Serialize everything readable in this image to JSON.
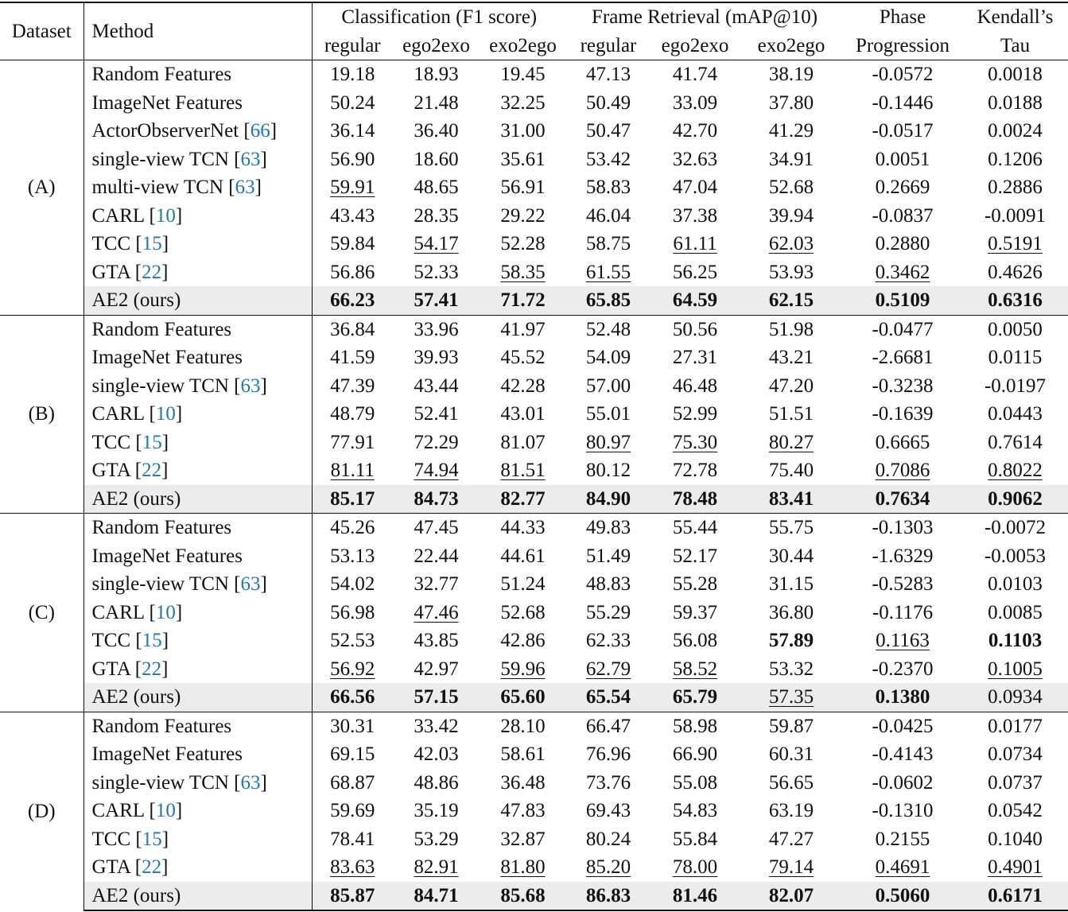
{
  "header": {
    "dataset": "Dataset",
    "method": "Method",
    "groups": [
      "Classification (F1 score)",
      "Frame Retrieval (mAP@10)"
    ],
    "sub": [
      "regular",
      "ego2exo",
      "exo2ego",
      "regular",
      "ego2exo",
      "exo2ego"
    ],
    "phase": [
      "Phase",
      "Progression"
    ],
    "tau": [
      "Kendall’s",
      "Tau"
    ]
  },
  "groups": [
    {
      "label": "(A)",
      "rows": [
        {
          "method": "Random Features",
          "values": [
            "19.18",
            "18.93",
            "19.45",
            "47.13",
            "41.74",
            "38.19",
            "-0.0572",
            "0.0018"
          ],
          "bold": [],
          "underline": []
        },
        {
          "method": "ImageNet Features",
          "values": [
            "50.24",
            "21.48",
            "32.25",
            "50.49",
            "33.09",
            "37.80",
            "-0.1446",
            "0.0188"
          ],
          "bold": [],
          "underline": []
        },
        {
          "method": "ActorObserverNet [66]",
          "values": [
            "36.14",
            "36.40",
            "31.00",
            "50.47",
            "42.70",
            "41.29",
            "-0.0517",
            "0.0024"
          ],
          "bold": [],
          "underline": []
        },
        {
          "method": "single-view TCN [63]",
          "values": [
            "56.90",
            "18.60",
            "35.61",
            "53.42",
            "32.63",
            "34.91",
            "0.0051",
            "0.1206"
          ],
          "bold": [],
          "underline": []
        },
        {
          "method": "multi-view TCN [63]",
          "values": [
            "59.91",
            "48.65",
            "56.91",
            "58.83",
            "47.04",
            "52.68",
            "0.2669",
            "0.2886"
          ],
          "bold": [],
          "underline": [
            0
          ]
        },
        {
          "method": "CARL [10]",
          "values": [
            "43.43",
            "28.35",
            "29.22",
            "46.04",
            "37.38",
            "39.94",
            "-0.0837",
            "-0.0091"
          ],
          "bold": [],
          "underline": []
        },
        {
          "method": "TCC [15]",
          "values": [
            "59.84",
            "54.17",
            "52.28",
            "58.75",
            "61.11",
            "62.03",
            "0.2880",
            "0.5191"
          ],
          "bold": [],
          "underline": [
            1,
            4,
            5,
            7
          ]
        },
        {
          "method": "GTA [22]",
          "values": [
            "56.86",
            "52.33",
            "58.35",
            "61.55",
            "56.25",
            "53.93",
            "0.3462",
            "0.4626"
          ],
          "bold": [],
          "underline": [
            2,
            3,
            6
          ]
        },
        {
          "method": "AE2 (ours)",
          "values": [
            "66.23",
            "57.41",
            "71.72",
            "65.85",
            "64.59",
            "62.15",
            "0.5109",
            "0.6316"
          ],
          "bold": [
            0,
            1,
            2,
            3,
            4,
            5,
            6,
            7
          ],
          "underline": []
        }
      ]
    },
    {
      "label": "(B)",
      "rows": [
        {
          "method": "Random Features",
          "values": [
            "36.84",
            "33.96",
            "41.97",
            "52.48",
            "50.56",
            "51.98",
            "-0.0477",
            "0.0050"
          ],
          "bold": [],
          "underline": []
        },
        {
          "method": "ImageNet Features",
          "values": [
            "41.59",
            "39.93",
            "45.52",
            "54.09",
            "27.31",
            "43.21",
            "-2.6681",
            "0.0115"
          ],
          "bold": [],
          "underline": []
        },
        {
          "method": "single-view TCN [63]",
          "values": [
            "47.39",
            "43.44",
            "42.28",
            "57.00",
            "46.48",
            "47.20",
            "-0.3238",
            "-0.0197"
          ],
          "bold": [],
          "underline": []
        },
        {
          "method": "CARL [10]",
          "values": [
            "48.79",
            "52.41",
            "43.01",
            "55.01",
            "52.99",
            "51.51",
            "-0.1639",
            "0.0443"
          ],
          "bold": [],
          "underline": []
        },
        {
          "method": "TCC [15]",
          "values": [
            "77.91",
            "72.29",
            "81.07",
            "80.97",
            "75.30",
            "80.27",
            "0.6665",
            "0.7614"
          ],
          "bold": [],
          "underline": [
            3,
            4,
            5
          ]
        },
        {
          "method": "GTA [22]",
          "values": [
            "81.11",
            "74.94",
            "81.51",
            "80.12",
            "72.78",
            "75.40",
            "0.7086",
            "0.8022"
          ],
          "bold": [],
          "underline": [
            0,
            1,
            2,
            6,
            7
          ]
        },
        {
          "method": "AE2 (ours)",
          "values": [
            "85.17",
            "84.73",
            "82.77",
            "84.90",
            "78.48",
            "83.41",
            "0.7634",
            "0.9062"
          ],
          "bold": [
            0,
            1,
            2,
            3,
            4,
            5,
            6,
            7
          ],
          "underline": []
        }
      ]
    },
    {
      "label": "(C)",
      "rows": [
        {
          "method": "Random Features",
          "values": [
            "45.26",
            "47.45",
            "44.33",
            "49.83",
            "55.44",
            "55.75",
            "-0.1303",
            "-0.0072"
          ],
          "bold": [],
          "underline": []
        },
        {
          "method": "ImageNet Features",
          "values": [
            "53.13",
            "22.44",
            "44.61",
            "51.49",
            "52.17",
            "30.44",
            "-1.6329",
            "-0.0053"
          ],
          "bold": [],
          "underline": []
        },
        {
          "method": "single-view TCN [63]",
          "values": [
            "54.02",
            "32.77",
            "51.24",
            "48.83",
            "55.28",
            "31.15",
            "-0.5283",
            "0.0103"
          ],
          "bold": [],
          "underline": []
        },
        {
          "method": "CARL [10]",
          "values": [
            "56.98",
            "47.46",
            "52.68",
            "55.29",
            "59.37",
            "36.80",
            "-0.1176",
            "0.0085"
          ],
          "bold": [],
          "underline": [
            1
          ]
        },
        {
          "method": "TCC [15]",
          "values": [
            "52.53",
            "43.85",
            "42.86",
            "62.33",
            "56.08",
            "57.89",
            "0.1163",
            "0.1103"
          ],
          "bold": [
            5,
            7
          ],
          "underline": [
            6
          ]
        },
        {
          "method": "GTA [22]",
          "values": [
            "56.92",
            "42.97",
            "59.96",
            "62.79",
            "58.52",
            "53.32",
            "-0.2370",
            "0.1005"
          ],
          "bold": [],
          "underline": [
            0,
            2,
            3,
            4,
            7
          ]
        },
        {
          "method": "AE2 (ours)",
          "values": [
            "66.56",
            "57.15",
            "65.60",
            "65.54",
            "65.79",
            "57.35",
            "0.1380",
            "0.0934"
          ],
          "bold": [
            0,
            1,
            2,
            3,
            4,
            6
          ],
          "underline": [
            5
          ]
        }
      ]
    },
    {
      "label": "(D)",
      "rows": [
        {
          "method": "Random Features",
          "values": [
            "30.31",
            "33.42",
            "28.10",
            "66.47",
            "58.98",
            "59.87",
            "-0.0425",
            "0.0177"
          ],
          "bold": [],
          "underline": []
        },
        {
          "method": "ImageNet Features",
          "values": [
            "69.15",
            "42.03",
            "58.61",
            "76.96",
            "66.90",
            "60.31",
            "-0.4143",
            "0.0734"
          ],
          "bold": [],
          "underline": []
        },
        {
          "method": "single-view TCN [63]",
          "values": [
            "68.87",
            "48.86",
            "36.48",
            "73.76",
            "55.08",
            "56.65",
            "-0.0602",
            "0.0737"
          ],
          "bold": [],
          "underline": []
        },
        {
          "method": "CARL [10]",
          "values": [
            "59.69",
            "35.19",
            "47.83",
            "69.43",
            "54.83",
            "63.19",
            "-0.1310",
            "0.0542"
          ],
          "bold": [],
          "underline": []
        },
        {
          "method": "TCC [15]",
          "values": [
            "78.41",
            "53.29",
            "32.87",
            "80.24",
            "55.84",
            "47.27",
            "0.2155",
            "0.1040"
          ],
          "bold": [],
          "underline": []
        },
        {
          "method": "GTA [22]",
          "values": [
            "83.63",
            "82.91",
            "81.80",
            "85.20",
            "78.00",
            "79.14",
            "0.4691",
            "0.4901"
          ],
          "bold": [],
          "underline": [
            0,
            1,
            2,
            3,
            4,
            5,
            6,
            7
          ]
        },
        {
          "method": "AE2 (ours)",
          "values": [
            "85.87",
            "84.71",
            "85.68",
            "86.83",
            "81.46",
            "82.07",
            "0.5060",
            "0.6171"
          ],
          "bold": [
            0,
            1,
            2,
            3,
            4,
            5,
            6,
            7
          ],
          "underline": []
        }
      ]
    }
  ]
}
